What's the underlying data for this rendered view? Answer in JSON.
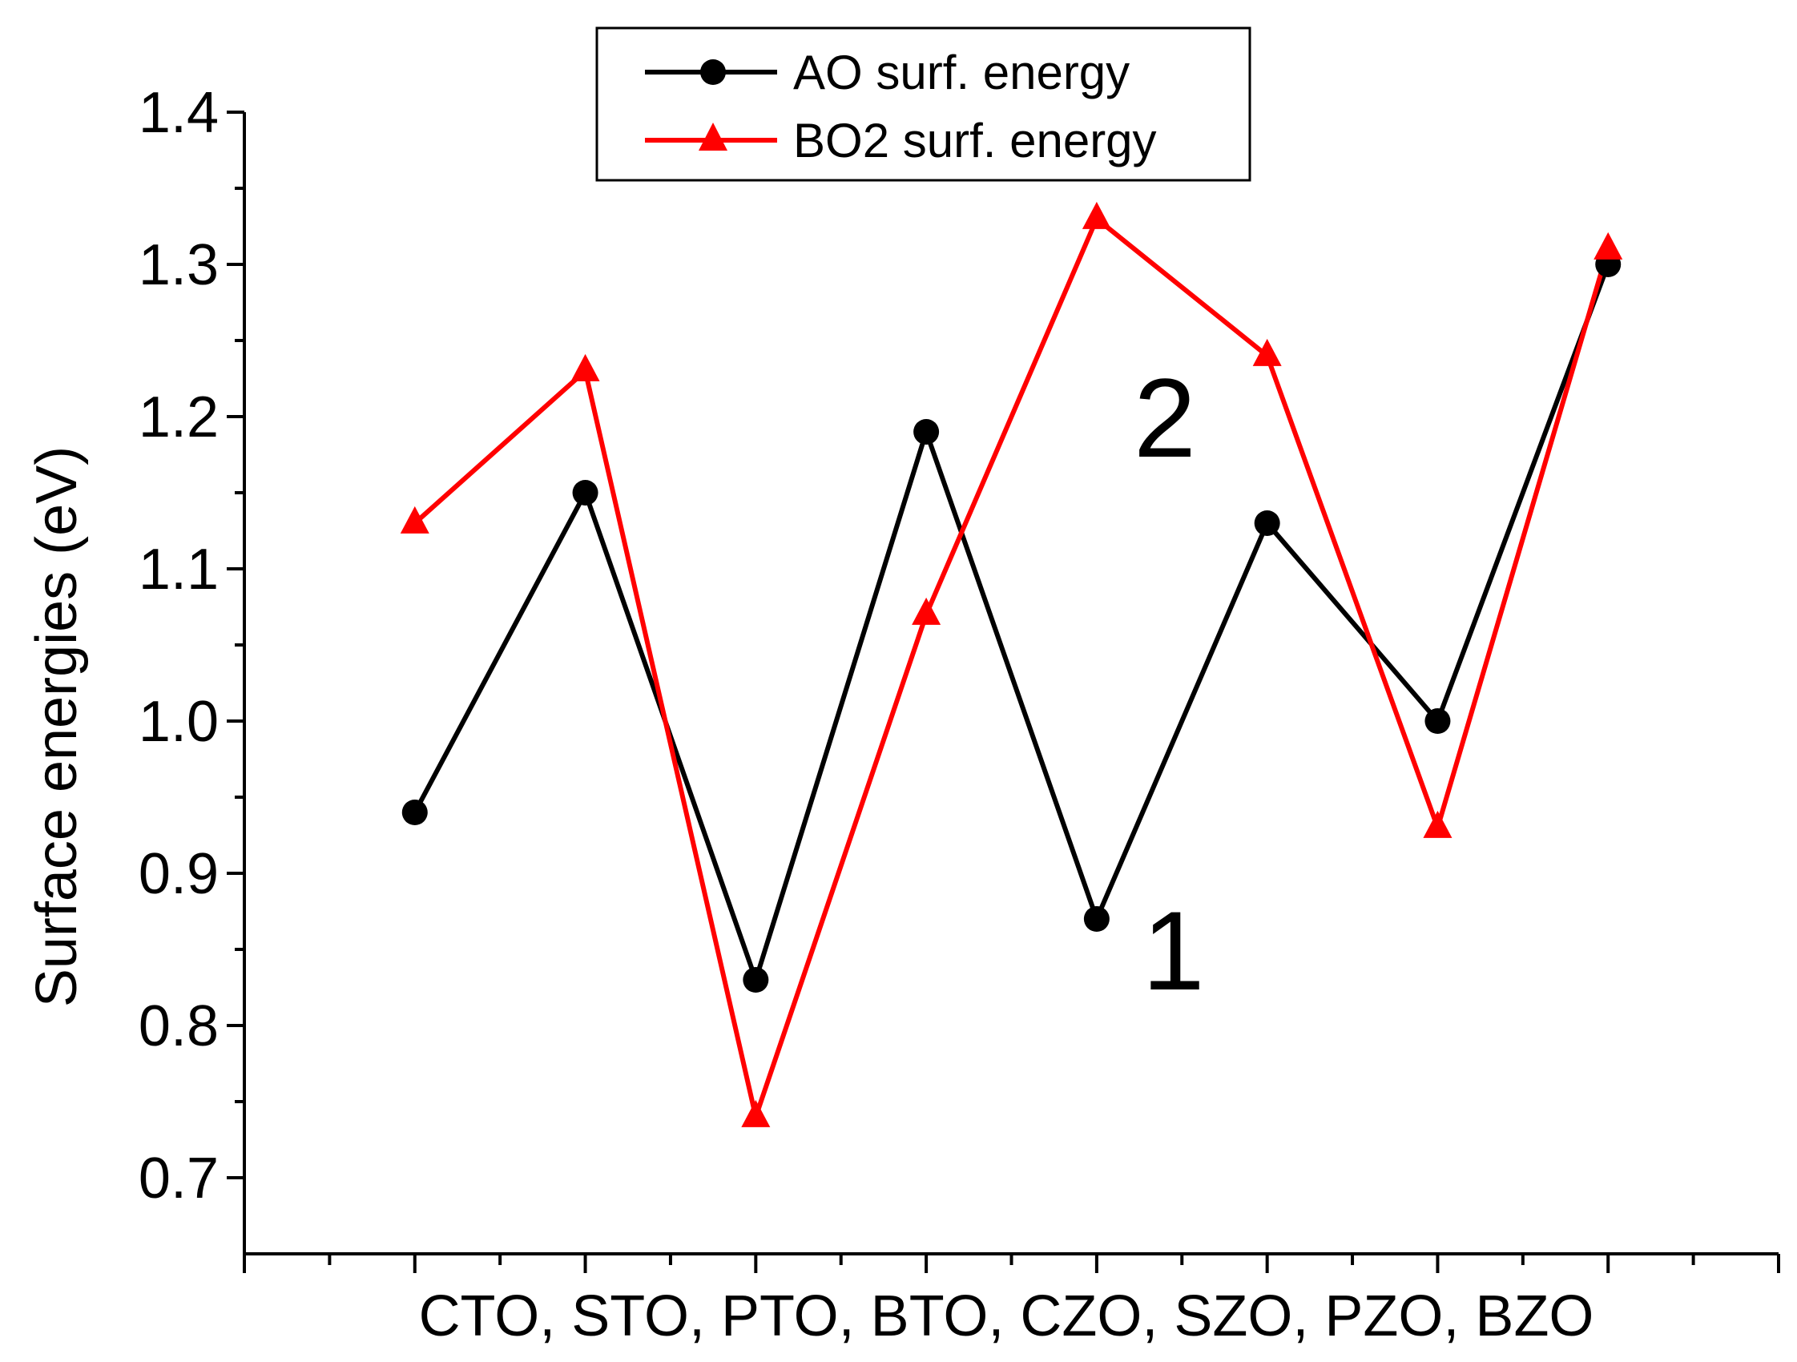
{
  "chart_data": {
    "type": "line",
    "title": "",
    "categories": [
      "CTO",
      "STO",
      "PTO",
      "BTO",
      "CZO",
      "SZO",
      "PZO",
      "BZO"
    ],
    "xlabel": "CTO, STO, PTO, BTO, CZO, SZO, PZO, BZO",
    "ylabel": "Surface energies (eV)",
    "ylim": [
      0.65,
      1.4
    ],
    "xlim": [
      0,
      9
    ],
    "yticks": [
      "0.7",
      "0.8",
      "0.9",
      "1.0",
      "1.1",
      "1.2",
      "1.3",
      "1.4"
    ],
    "grid": false,
    "legend_position": "top-center",
    "series": [
      {
        "name": "AO surf. energy",
        "color": "#000000",
        "marker": "circle",
        "values": [
          0.94,
          1.15,
          0.83,
          1.19,
          0.87,
          1.13,
          1.0,
          1.3
        ]
      },
      {
        "name": "BO2 surf. energy",
        "color": "#ff0000",
        "marker": "triangle",
        "values": [
          1.13,
          1.23,
          0.74,
          1.07,
          1.33,
          1.24,
          0.93,
          1.31
        ]
      }
    ],
    "annotations": [
      {
        "text": "2",
        "category": "CZO",
        "offset_category": 0.4,
        "y": 1.2
      },
      {
        "text": "1",
        "category": "CZO",
        "offset_category": 0.45,
        "y": 0.85
      }
    ]
  }
}
